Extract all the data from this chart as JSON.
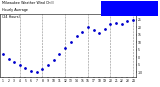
{
  "hours": [
    1,
    2,
    3,
    4,
    5,
    6,
    7,
    8,
    9,
    10,
    11,
    12,
    13,
    14,
    15,
    16,
    17,
    18,
    19,
    20,
    21,
    22,
    23,
    24
  ],
  "wind_chill": [
    2,
    -1,
    -3,
    -5,
    -7,
    -9,
    -10,
    -8,
    -5,
    -2,
    2,
    6,
    10,
    14,
    17,
    20,
    18,
    16,
    19,
    22,
    23,
    22,
    24,
    25
  ],
  "dot_color": "#0000cc",
  "bg_color": "#ffffff",
  "grid_color": "#888888",
  "legend_box_color": "#0000ff",
  "ytick_values": [
    25,
    20,
    15,
    10,
    5,
    0,
    -5,
    -10
  ],
  "ylim": [
    -13,
    29
  ],
  "xlim": [
    0.5,
    24.5
  ],
  "vline_positions": [
    4,
    8,
    12,
    16,
    20,
    24
  ],
  "title_line1": "Milwaukee Weather Wind Chill",
  "title_line2": "Hourly Average",
  "title_line3": "(24 Hours)"
}
